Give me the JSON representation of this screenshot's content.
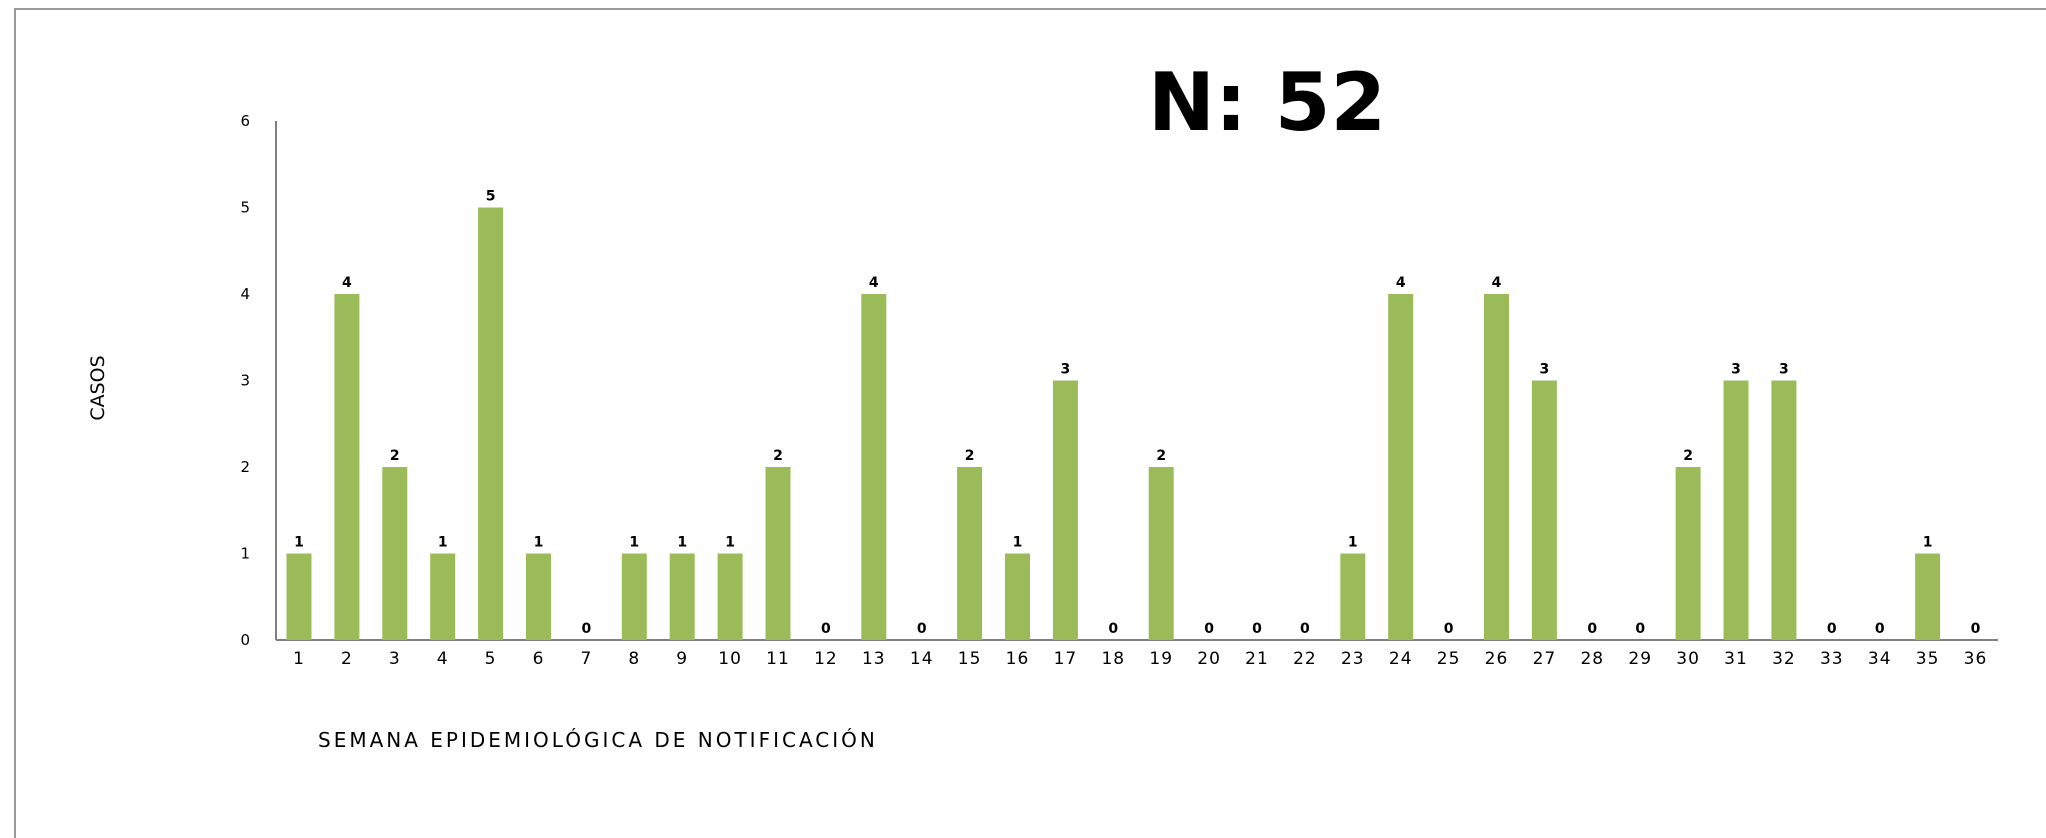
{
  "chart_data": {
    "type": "bar",
    "title": "N: 52",
    "xlabel": "SEMANA  EPIDEMIOLÓGICA  DE  NOTIFICACIÓN",
    "ylabel": "CASOS",
    "ylim": [
      0,
      6
    ],
    "yticks": [
      "0",
      "1",
      "2",
      "3",
      "4",
      "5",
      "6"
    ],
    "categories": [
      "1",
      "2",
      "3",
      "4",
      "5",
      "6",
      "7",
      "8",
      "9",
      "10",
      "11",
      "12",
      "13",
      "14",
      "15",
      "16",
      "17",
      "18",
      "19",
      "20",
      "21",
      "22",
      "23",
      "24",
      "25",
      "26",
      "27",
      "28",
      "29",
      "30",
      "31",
      "32",
      "33",
      "34",
      "35",
      "36"
    ],
    "values": [
      1,
      4,
      2,
      1,
      5,
      1,
      0,
      1,
      1,
      1,
      2,
      0,
      4,
      0,
      2,
      1,
      3,
      0,
      2,
      0,
      0,
      0,
      1,
      4,
      0,
      4,
      3,
      0,
      0,
      2,
      3,
      3,
      0,
      0,
      1,
      0
    ],
    "bar_color": "#9BBB59",
    "grid": false,
    "legend": "none"
  }
}
